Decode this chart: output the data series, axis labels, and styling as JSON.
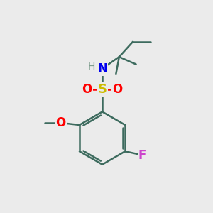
{
  "background_color": "#ebebeb",
  "bond_color": "#3d6b5e",
  "bond_width": 1.8,
  "atom_colors": {
    "O": "#ff0000",
    "S": "#ccbb00",
    "N": "#0000ee",
    "H": "#7a9a8a",
    "F": "#cc44cc",
    "C": "#3d6b5e"
  },
  "figsize": [
    3.0,
    3.0
  ],
  "dpi": 100,
  "ring_color": "#3d6b5e"
}
